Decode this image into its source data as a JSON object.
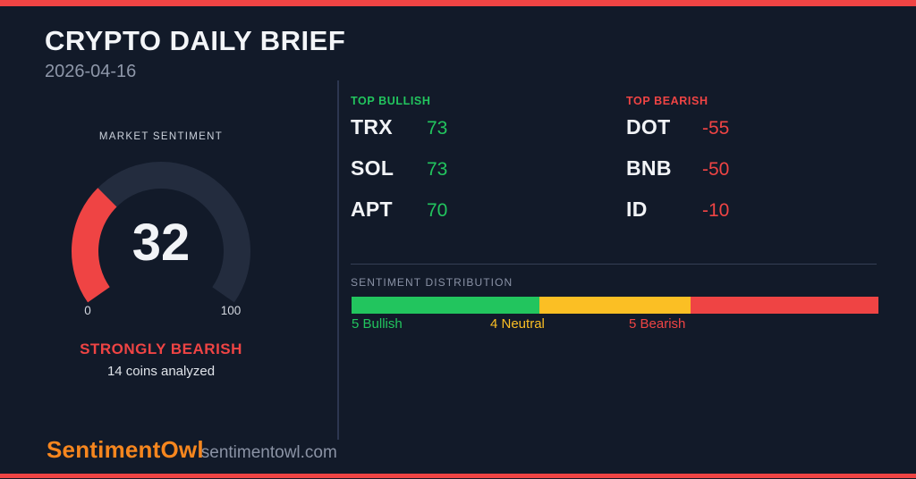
{
  "header": {
    "title": "CRYPTO DAILY BRIEF",
    "date": "2026-04-16"
  },
  "gauge": {
    "label": "MARKET SENTIMENT",
    "value": 32,
    "min": 0,
    "max": 100,
    "status": "STRONGLY BEARISH",
    "note": "14 coins analyzed",
    "track_color": "#232c3e",
    "value_color": "#ef4444"
  },
  "top_bullish": {
    "title": "TOP BULLISH",
    "items": [
      {
        "symbol": "TRX",
        "score": "73"
      },
      {
        "symbol": "SOL",
        "score": "73"
      },
      {
        "symbol": "APT",
        "score": "70"
      }
    ]
  },
  "top_bearish": {
    "title": "TOP BEARISH",
    "items": [
      {
        "symbol": "DOT",
        "score": "-55"
      },
      {
        "symbol": "BNB",
        "score": "-50"
      },
      {
        "symbol": "ID",
        "score": "-10"
      }
    ]
  },
  "distribution": {
    "title": "SENTIMENT DISTRIBUTION",
    "segments": [
      {
        "label": "5 Bullish",
        "count": 5,
        "color": "#22c55e"
      },
      {
        "label": "4 Neutral",
        "count": 4,
        "color": "#fbbf24"
      },
      {
        "label": "5 Bearish",
        "count": 5,
        "color": "#ef4444"
      }
    ]
  },
  "footer": {
    "brand": "SentimentOwl",
    "site": "sentimentowl.com"
  },
  "colors": {
    "background": "#121a29",
    "accent_red": "#ef4444",
    "green": "#22c55e",
    "yellow": "#fbbf24",
    "orange": "#f6861e",
    "text_primary": "#f2f4f7",
    "text_muted": "#8e97a9"
  },
  "chart_data": [
    {
      "type": "gauge",
      "title": "MARKET SENTIMENT",
      "value": 32,
      "range": [
        0,
        100
      ],
      "status": "STRONGLY BEARISH",
      "annotation": "14 coins analyzed",
      "filled_color": "#ef4444",
      "track_color": "#232c3e"
    },
    {
      "type": "table",
      "title": "TOP BULLISH",
      "columns": [
        "symbol",
        "score"
      ],
      "rows": [
        [
          "TRX",
          73
        ],
        [
          "SOL",
          73
        ],
        [
          "APT",
          70
        ]
      ]
    },
    {
      "type": "table",
      "title": "TOP BEARISH",
      "columns": [
        "symbol",
        "score"
      ],
      "rows": [
        [
          "DOT",
          -55
        ],
        [
          "BNB",
          -50
        ],
        [
          "ID",
          -10
        ]
      ]
    },
    {
      "type": "bar",
      "title": "SENTIMENT DISTRIBUTION",
      "subtype": "stacked-horizontal",
      "categories": [
        "Bullish",
        "Neutral",
        "Bearish"
      ],
      "values": [
        5,
        4,
        5
      ],
      "colors": [
        "#22c55e",
        "#fbbf24",
        "#ef4444"
      ],
      "total": 14
    }
  ]
}
